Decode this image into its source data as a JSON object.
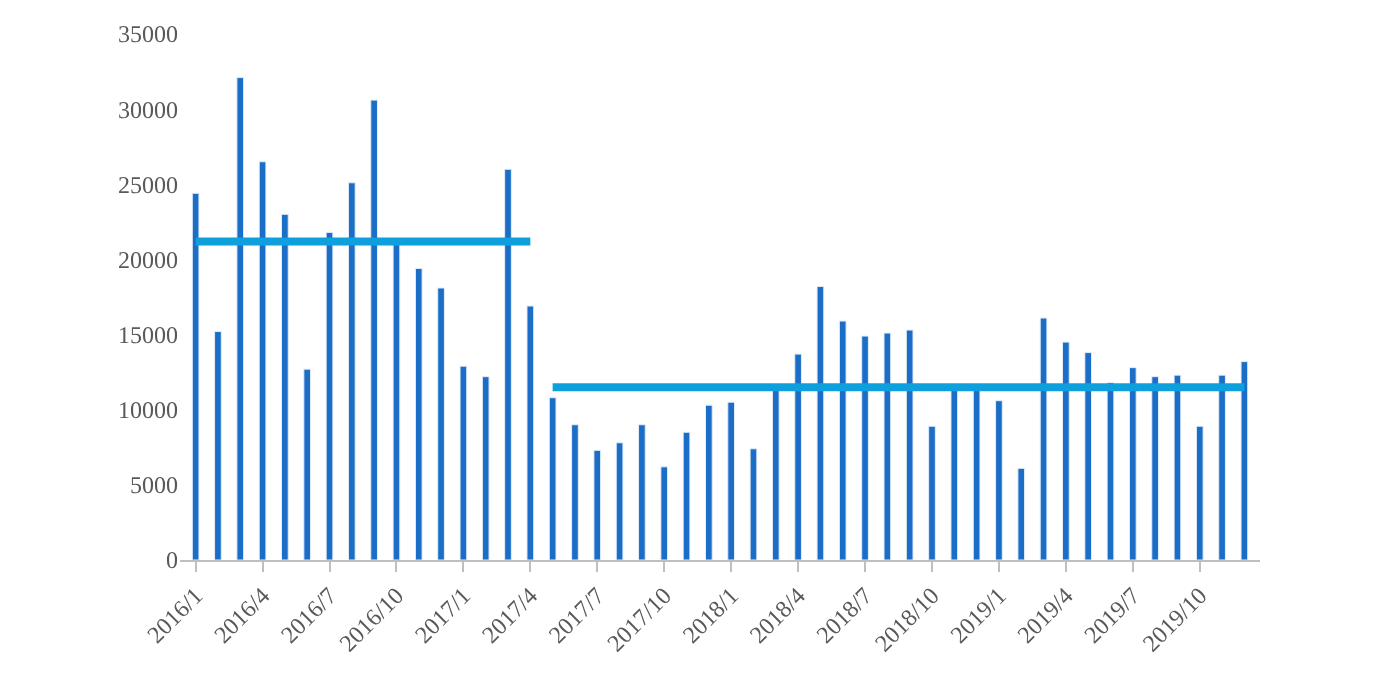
{
  "chart_data": {
    "type": "bar",
    "categories": [
      "2016/1",
      null,
      null,
      "2016/4",
      null,
      null,
      "2016/7",
      null,
      null,
      "2016/10",
      null,
      null,
      "2017/1",
      null,
      null,
      "2017/4",
      null,
      null,
      "2017/7",
      null,
      null,
      "2017/10",
      null,
      null,
      "2018/1",
      null,
      null,
      "2018/4",
      null,
      null,
      "2018/7",
      null,
      null,
      "2018/10",
      null,
      null,
      "2019/1",
      null,
      null,
      "2019/4",
      null,
      null,
      "2019/7",
      null,
      null,
      "2019/10",
      null,
      null
    ],
    "series": [
      {
        "color": "#1a6ec8",
        "values": [
          24400,
          15200,
          32100,
          26500,
          23000,
          12700,
          21800,
          25100,
          30600,
          21000,
          19400,
          18100,
          12900,
          12200,
          26000,
          16900,
          10800,
          9000,
          7300,
          7800,
          9000,
          6200,
          8500,
          10300,
          10500,
          7400,
          11300,
          13700,
          18200,
          15900,
          14900,
          15100,
          15300,
          8900,
          11300,
          11300,
          10600,
          6100,
          16100,
          14500,
          13800,
          11800,
          12800,
          12200,
          12300,
          8900,
          12300,
          13200
        ]
      },
      {
        "type": "line",
        "color": "#0ea0dc",
        "values": [
          21200,
          21200,
          21200,
          21200,
          21200,
          21200,
          21200,
          21200,
          21200,
          21200,
          21200,
          21200,
          21200,
          21200,
          21200,
          21200,
          null,
          null,
          null,
          null,
          null,
          null,
          null,
          null,
          null,
          null,
          null,
          null,
          null,
          null,
          null,
          null,
          null,
          null,
          null,
          null,
          null,
          null,
          null,
          null,
          null,
          null,
          null,
          null,
          null,
          null,
          null,
          null
        ]
      },
      {
        "type": "line",
        "color": "#0ea0dc",
        "values": [
          null,
          null,
          null,
          null,
          null,
          null,
          null,
          null,
          null,
          null,
          null,
          null,
          null,
          null,
          null,
          null,
          11500,
          11500,
          11500,
          11500,
          11500,
          11500,
          11500,
          11500,
          11500,
          11500,
          11500,
          11500,
          11500,
          11500,
          11500,
          11500,
          11500,
          11500,
          11500,
          11500,
          11500,
          11500,
          11500,
          11500,
          11500,
          11500,
          11500,
          11500,
          11500,
          11500,
          11500,
          11500
        ]
      }
    ],
    "ylim": [
      0,
      35000
    ],
    "yticks": [
      0,
      5000,
      10000,
      15000,
      20000,
      25000,
      30000,
      35000
    ],
    "legend": false,
    "marker": "none",
    "line_style": "solid"
  }
}
